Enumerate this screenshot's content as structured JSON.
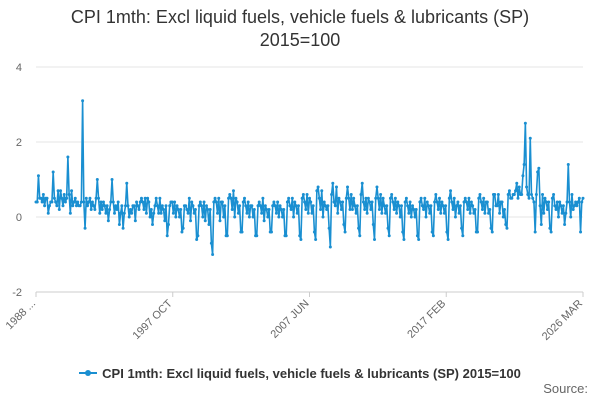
{
  "chart_data": {
    "type": "line",
    "title_lines": [
      "CPI 1mth: Excl liquid fuels, vehicle fuels & lubricants (SP)",
      "2015=100"
    ],
    "xlabel": "",
    "ylabel": "",
    "ylim": [
      -2,
      4
    ],
    "y_ticks": [
      "4",
      "2",
      "0",
      "-2"
    ],
    "x_ticks": [
      "1988 ...",
      "1997 OCT",
      "2007 JUN",
      "2017 FEB",
      "2026 MAR"
    ],
    "grid": true,
    "legend_position": "bottom",
    "series": [
      {
        "name": "CPI 1mth: Excl liquid fuels, vehicle fuels & lubricants (SP) 2015=100",
        "color": "#1a8fd1",
        "start": "1988-01",
        "frequency": "monthly",
        "values": [
          0.4,
          0.4,
          1.1,
          0.5,
          0.5,
          0.4,
          0.6,
          0.3,
          0.5,
          0.5,
          0.1,
          0.3,
          0.4,
          0.4,
          1.2,
          0.5,
          0.4,
          0.3,
          0.7,
          0.2,
          0.7,
          0.5,
          0.3,
          0.6,
          0.4,
          0.5,
          1.6,
          0.6,
          0.1,
          0.7,
          0.3,
          0.4,
          0.5,
          0.3,
          0.4,
          0.3,
          0.3,
          0.4,
          3.1,
          0.4,
          -0.3,
          0.5,
          0.3,
          0.4,
          0.5,
          0.2,
          0.4,
          0.3,
          0.2,
          0.5,
          1.0,
          0.5,
          0.1,
          0.4,
          0.2,
          0.4,
          0.3,
          0.1,
          0.3,
          -0.1,
          0.2,
          0.4,
          1.0,
          0.4,
          0.1,
          0.3,
          0.2,
          0.4,
          -0.2,
          0.1,
          0.3,
          -0.3,
          0.1,
          0.3,
          0.9,
          0.3,
          0.0,
          0.2,
          0.1,
          0.3,
          0.3,
          -0.1,
          0.4,
          0.3,
          0.2,
          0.4,
          0.5,
          0.4,
          0.2,
          0.5,
          0.1,
          0.5,
          0.4,
          0.0,
          0.2,
          -0.2,
          0.1,
          0.3,
          0.5,
          0.3,
          0.1,
          0.5,
          0.1,
          0.3,
          0.2,
          -0.1,
          0.3,
          -0.5,
          -0.2,
          0.3,
          0.4,
          0.4,
          0.1,
          0.4,
          0.0,
          0.3,
          0.2,
          0.0,
          0.2,
          -0.4,
          -0.3,
          0.3,
          0.3,
          0.2,
          0.1,
          0.5,
          -0.1,
          0.4,
          0.3,
          0.1,
          0.2,
          -0.6,
          -0.5,
          0.3,
          0.4,
          0.3,
          0.0,
          0.4,
          -0.1,
          0.3,
          0.2,
          -0.2,
          0.2,
          -0.7,
          -1.0,
          0.4,
          0.5,
          0.4,
          0.1,
          0.5,
          -0.1,
          0.4,
          0.4,
          0.0,
          0.3,
          -0.5,
          -0.5,
          0.5,
          0.6,
          0.5,
          0.2,
          0.7,
          0.0,
          0.5,
          0.4,
          0.1,
          0.3,
          -0.4,
          -0.4,
          0.4,
          0.5,
          0.3,
          0.1,
          0.4,
          0.0,
          0.3,
          0.3,
          0.0,
          0.2,
          -0.5,
          -0.5,
          0.3,
          0.4,
          0.3,
          0.1,
          0.5,
          -0.1,
          0.3,
          0.2,
          0.0,
          0.2,
          -0.4,
          -0.4,
          0.3,
          0.4,
          0.3,
          0.1,
          0.4,
          0.0,
          0.3,
          0.2,
          0.0,
          0.2,
          -0.5,
          -0.5,
          0.4,
          0.5,
          0.3,
          0.2,
          0.5,
          0.0,
          0.4,
          0.3,
          0.1,
          0.3,
          -0.5,
          -0.6,
          0.5,
          0.6,
          0.4,
          0.2,
          0.6,
          0.1,
          0.5,
          0.4,
          0.1,
          0.3,
          -0.4,
          -0.6,
          0.7,
          0.8,
          0.5,
          0.2,
          0.7,
          0.0,
          0.4,
          0.3,
          0.2,
          0.3,
          -0.3,
          -0.8,
          0.6,
          0.9,
          0.4,
          0.3,
          0.8,
          0.1,
          0.5,
          0.4,
          0.2,
          0.4,
          -0.2,
          -0.4,
          0.5,
          0.8,
          0.5,
          0.2,
          0.6,
          0.2,
          0.5,
          0.3,
          0.1,
          0.3,
          -0.3,
          -0.5,
          0.6,
          0.9,
          0.4,
          0.2,
          0.5,
          0.1,
          0.5,
          0.4,
          0.2,
          0.4,
          -0.2,
          -0.6,
          0.5,
          0.8,
          0.5,
          0.2,
          0.6,
          0.1,
          0.5,
          0.3,
          0.1,
          0.3,
          -0.3,
          -0.5,
          0.5,
          0.6,
          0.4,
          0.2,
          0.5,
          0.1,
          0.4,
          0.3,
          0.0,
          0.3,
          -0.4,
          -0.6,
          0.4,
          0.5,
          0.3,
          0.1,
          0.4,
          0.0,
          0.3,
          0.2,
          0.0,
          0.2,
          -0.5,
          -0.6,
          0.4,
          0.5,
          0.3,
          0.2,
          0.5,
          0.0,
          0.4,
          0.3,
          0.1,
          0.3,
          -0.4,
          -0.5,
          0.4,
          0.6,
          0.4,
          0.2,
          0.5,
          0.1,
          0.4,
          0.3,
          0.1,
          0.3,
          -0.4,
          -0.6,
          0.5,
          0.7,
          0.4,
          0.2,
          0.5,
          0.0,
          0.3,
          0.4,
          0.1,
          0.3,
          -0.3,
          -0.5,
          0.4,
          0.5,
          0.4,
          0.2,
          0.5,
          0.1,
          0.4,
          0.3,
          0.1,
          0.2,
          -0.4,
          -0.4,
          0.5,
          0.6,
          0.4,
          0.2,
          0.5,
          0.1,
          0.4,
          0.4,
          0.1,
          0.2,
          -0.3,
          -0.4,
          0.6,
          0.6,
          0.3,
          0.3,
          0.6,
          0.1,
          0.4,
          0.4,
          0.0,
          0.2,
          -0.2,
          -0.3,
          0.6,
          0.7,
          0.5,
          0.5,
          0.6,
          0.6,
          0.7,
          0.9,
          0.5,
          0.8,
          0.6,
          0.6,
          1.1,
          1.4,
          2.5,
          0.8,
          0.6,
          0.5,
          2.1,
          0.6,
          0.5,
          0.4,
          -0.4,
          0.6,
          1.2,
          1.3,
          0.3,
          -0.2,
          0.6,
          0.1,
          0.5,
          0.4,
          0.2,
          0.4,
          -0.3,
          -0.4,
          0.5,
          0.6,
          0.3,
          0.2,
          0.4,
          0.0,
          0.4,
          0.3,
          0.1,
          0.3,
          -0.2,
          0.1,
          0.4,
          1.4,
          0.4,
          0.0,
          0.6,
          0.2,
          0.3,
          0.4,
          0.3,
          0.4,
          0.5,
          -0.4,
          0.4,
          0.5
        ]
      }
    ]
  },
  "source_label": "Source:"
}
